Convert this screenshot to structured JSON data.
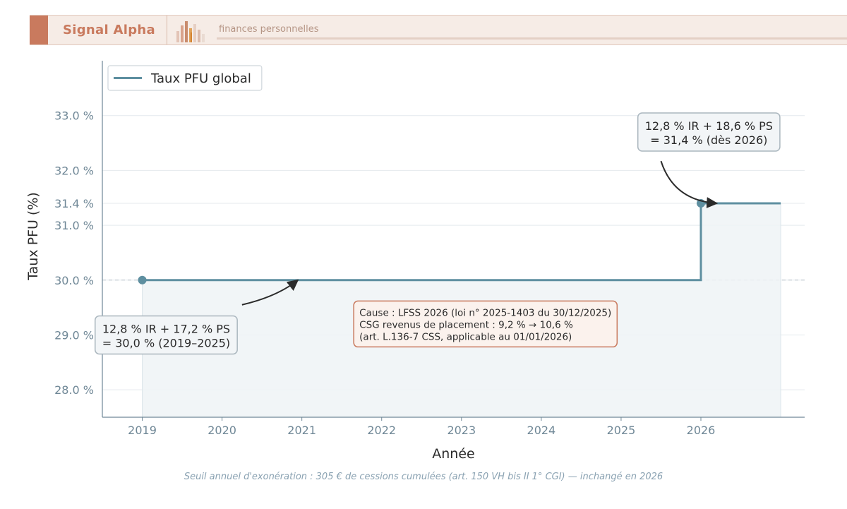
{
  "banner": {
    "brand": "Signal Alpha",
    "tagline": "finances personnelles",
    "accent_color": "#c97a5e",
    "logo_icon": "bar-chart-logo-icon"
  },
  "chart_data": {
    "type": "line",
    "step": true,
    "title": "",
    "xlabel": "Année",
    "ylabel": "Taux PFU (%)",
    "xlim": [
      2018.5,
      2027.3
    ],
    "ylim": [
      27.5,
      34.0
    ],
    "x_ticks": [
      2019,
      2020,
      2021,
      2022,
      2023,
      2024,
      2025,
      2026
    ],
    "y_ticks": [
      28.0,
      29.0,
      30.0,
      31.0,
      31.4,
      32.0,
      33.0
    ],
    "y_tick_labels": [
      "28.0 %",
      "29.0 %",
      "30.0 %",
      "31.0 %",
      "31.4 %",
      "32.0 %",
      "33.0 %"
    ],
    "grid": true,
    "legend": {
      "position": "top-left",
      "entries": [
        "Taux PFU global"
      ]
    },
    "reference_line": {
      "y": 30.0,
      "style": "dashed"
    },
    "series": [
      {
        "name": "Taux PFU global",
        "color": "#5e8fa0",
        "x": [
          2019,
          2026,
          2026,
          2027
        ],
        "y": [
          30.0,
          30.0,
          31.4,
          31.4
        ]
      }
    ],
    "markers": [
      {
        "x": 2019,
        "y": 30.0
      },
      {
        "x": 2026,
        "y": 31.4
      }
    ],
    "annotations": [
      {
        "lines": [
          "12,8 % IR + 17,2 % PS",
          "= 30,0 % (2019–2025)"
        ],
        "style": "gray",
        "box_x": 2019.3,
        "box_y": 29.0,
        "arrow_from": [
          2020.25,
          29.55
        ],
        "arrow_to": [
          2020.95,
          30.0
        ]
      },
      {
        "lines": [
          "12,8 % IR + 18,6 % PS",
          "= 31,4 % (dès 2026)"
        ],
        "style": "gray",
        "box_x": 2026.1,
        "box_y": 32.7,
        "arrow_from": [
          2025.5,
          32.17
        ],
        "arrow_to": [
          2026.2,
          31.4
        ]
      },
      {
        "lines": [
          "Cause : LFSS 2026 (loi n° 2025-1403 du 30/12/2025)",
          "CSG revenus de placement : 9,2 % → 10,6 %",
          "(art. L.136-7 CSS, applicable au 01/01/2026)"
        ],
        "style": "orange",
        "box_x": 2023.3,
        "box_y": 29.2
      }
    ],
    "footnote": "Seuil annuel d'exonération : 305 € de cessions cumulées (art. 150 VH bis II 1° CGI) — inchangé en 2026"
  }
}
